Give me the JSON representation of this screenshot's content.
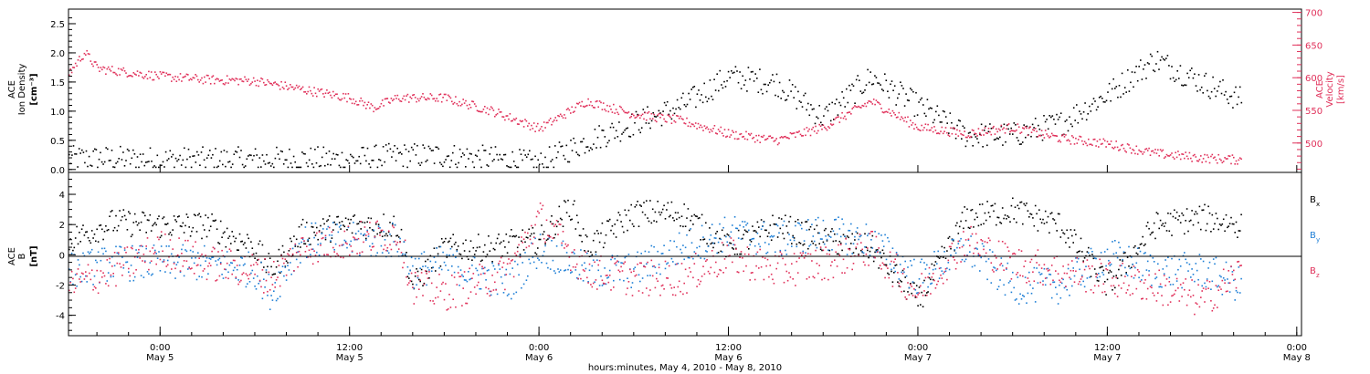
{
  "colors": {
    "black": "#000000",
    "blue": "#1e7fd6",
    "red": "#e0305a"
  },
  "xaxis": {
    "label": "hours:minutes, May  4, 2010 - May  8, 2010",
    "range_hours": [
      -5.8,
      72.3
    ],
    "ticks": [
      {
        "hour": 0,
        "time": "0:00",
        "date": "May 5"
      },
      {
        "hour": 12,
        "time": "12:00",
        "date": "May 5"
      },
      {
        "hour": 24,
        "time": "0:00",
        "date": "May 6"
      },
      {
        "hour": 36,
        "time": "12:00",
        "date": "May 6"
      },
      {
        "hour": 48,
        "time": "0:00",
        "date": "May 7"
      },
      {
        "hour": 60,
        "time": "12:00",
        "date": "May 7"
      },
      {
        "hour": 72,
        "time": "0:00",
        "date": "May 8"
      }
    ]
  },
  "chart_data": [
    {
      "type": "scatter",
      "title": "",
      "ylabel_left": [
        "ACE",
        "Ion Density",
        "[cm⁻³]"
      ],
      "ylabel_right": [
        "ACE",
        "Velocity",
        "[km/s]"
      ],
      "ylim_left": [
        -0.05,
        2.75
      ],
      "ylim_right": [
        455,
        705
      ],
      "left_ticks": [
        "0.0",
        "0.5",
        "1.0",
        "1.5",
        "2.0",
        "2.5"
      ],
      "left_tick_values": [
        0.0,
        0.5,
        1.0,
        1.5,
        2.0,
        2.5
      ],
      "right_ticks": [
        "500",
        "550",
        "600",
        "650",
        "700"
      ],
      "right_tick_values": [
        500,
        550,
        600,
        650,
        700
      ],
      "series": [
        {
          "name": "Ion Density",
          "color": "#000000",
          "axis": "left",
          "x": [
            -5.8,
            -3,
            0,
            3,
            6,
            9,
            12,
            15,
            18,
            21,
            24,
            27,
            30,
            33,
            36,
            39,
            42,
            45,
            48,
            51,
            54,
            57,
            60,
            63,
            66,
            68.5
          ],
          "y": [
            0.2,
            0.2,
            0.18,
            0.18,
            0.18,
            0.19,
            0.18,
            0.25,
            0.25,
            0.2,
            0.1,
            0.5,
            0.8,
            1.1,
            1.6,
            1.5,
            0.9,
            1.6,
            1.1,
            0.6,
            0.6,
            0.8,
            1.3,
            1.9,
            1.5,
            1.2
          ]
        },
        {
          "name": "Velocity",
          "color": "#e0305a",
          "axis": "right",
          "x": [
            -5.8,
            -4.8,
            -4,
            -3,
            0,
            3,
            6,
            9,
            12,
            13.5,
            15,
            18,
            21,
            24,
            27,
            30,
            33,
            36,
            39,
            42,
            45,
            48,
            51,
            54,
            57,
            60,
            63,
            66,
            68.5
          ],
          "y": [
            608,
            640,
            615,
            612,
            603,
            598,
            596,
            583,
            570,
            555,
            570,
            570,
            550,
            523,
            565,
            545,
            535,
            515,
            505,
            525,
            565,
            525,
            515,
            525,
            508,
            500,
            485,
            478,
            475
          ]
        }
      ]
    },
    {
      "type": "scatter",
      "title": "",
      "ylabel_left": [
        "ACE",
        "B",
        "[nT]"
      ],
      "ylim": [
        -5.35,
        5.45
      ],
      "left_ticks": [
        "-4",
        "-2",
        "0",
        "2",
        "4"
      ],
      "left_tick_values": [
        -4,
        -2,
        0,
        2,
        4
      ],
      "legend": [
        "B",
        "B",
        "B"
      ],
      "legend_subscripts": [
        "x",
        "y",
        "z"
      ],
      "series": [
        {
          "name": "Bx",
          "color": "#000000",
          "x": [
            -5.8,
            -3,
            0,
            3,
            6,
            7,
            9,
            12,
            15,
            16,
            18,
            21,
            22,
            24,
            26,
            27,
            30,
            33,
            36,
            39,
            42,
            45,
            48,
            51,
            54,
            57,
            60,
            63,
            66,
            68.5
          ],
          "y": [
            1.0,
            2.2,
            2.0,
            2.0,
            0.5,
            -1.0,
            1.5,
            2.0,
            2.0,
            -2.0,
            0.5,
            0.5,
            0.8,
            1.0,
            3.3,
            0.5,
            2.8,
            2.8,
            0.5,
            2.0,
            1.0,
            0.5,
            -3.0,
            2.5,
            3.0,
            2.0,
            -2.0,
            2.0,
            2.5,
            2.0
          ]
        },
        {
          "name": "By",
          "color": "#1e7fd6",
          "x": [
            -5.8,
            -3,
            0,
            3,
            6,
            7,
            9,
            12,
            15,
            16,
            18,
            21,
            22,
            24,
            27,
            30,
            33,
            36,
            39,
            42,
            45,
            48,
            51,
            54,
            57,
            60,
            63,
            66,
            68.5
          ],
          "y": [
            -1.0,
            -0.5,
            -0.5,
            -0.5,
            -1.0,
            -2.5,
            1.0,
            1.0,
            1.0,
            -1.0,
            -0.5,
            -1.5,
            -2.0,
            0.5,
            -1.0,
            -1.0,
            0.5,
            1.5,
            1.0,
            1.5,
            1.0,
            -1.5,
            0.5,
            -2.0,
            -2.0,
            0.0,
            -1.0,
            -1.0,
            -2.0
          ]
        },
        {
          "name": "Bz",
          "color": "#e0305a",
          "x": [
            -5.8,
            -3,
            0,
            3,
            6,
            7,
            9,
            12,
            15,
            16,
            18,
            21,
            22,
            24,
            27,
            30,
            33,
            36,
            39,
            42,
            45,
            48,
            51,
            54,
            57,
            60,
            63,
            66,
            68.5
          ],
          "y": [
            -2.0,
            -1.0,
            0.5,
            -0.5,
            -1.0,
            -1.5,
            0.5,
            1.0,
            1.5,
            -2.0,
            -2.5,
            -1.5,
            -1.0,
            2.5,
            -1.0,
            -1.5,
            -1.5,
            0.0,
            -1.0,
            -0.5,
            0.5,
            -2.5,
            1.0,
            -0.5,
            -1.0,
            -1.5,
            -2.0,
            -3.0,
            -1.0
          ]
        }
      ]
    }
  ]
}
